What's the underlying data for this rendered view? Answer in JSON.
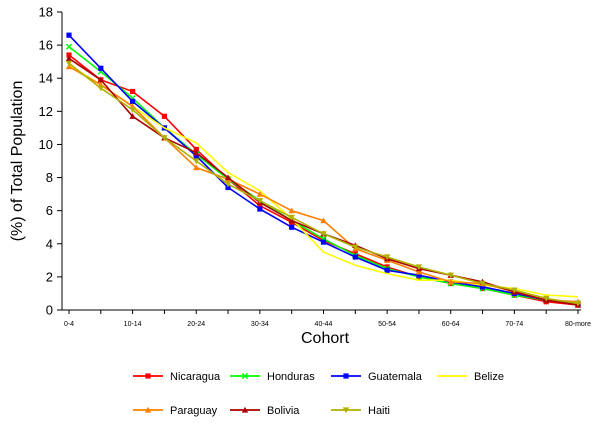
{
  "chart_data": {
    "type": "line",
    "title": "",
    "xlabel": "Cohort",
    "ylabel": "(%) of Total Population",
    "ylim": [
      0,
      18
    ],
    "y_ticks": [
      0,
      2,
      4,
      6,
      8,
      10,
      12,
      14,
      16,
      18
    ],
    "x": [
      "0-4",
      "5-9",
      "10-14",
      "15-19",
      "20-24",
      "25-29",
      "30-34",
      "35-39",
      "40-44",
      "45-49",
      "50-54",
      "55-59",
      "60-64",
      "65-69",
      "70-74",
      "75-79",
      "80-more"
    ],
    "x_tick_labels": [
      "0-4",
      "",
      "10-14",
      "",
      "20-24",
      "",
      "30-34",
      "",
      "40-44",
      "",
      "50-54",
      "",
      "60-64",
      "",
      "70-74",
      "",
      "80-more"
    ],
    "grid": false,
    "legend_position": "bottom",
    "series": [
      {
        "name": "Nicaragua",
        "color": "#ff0000",
        "marker": "square",
        "values": [
          15.4,
          13.9,
          13.2,
          11.7,
          9.7,
          7.9,
          6.3,
          5.3,
          4.2,
          3.4,
          2.6,
          2.0,
          1.6,
          1.3,
          0.9,
          0.5,
          0.3
        ]
      },
      {
        "name": "Honduras",
        "color": "#00ff00",
        "marker": "x",
        "values": [
          15.9,
          14.4,
          12.8,
          11.0,
          9.4,
          7.9,
          6.6,
          5.4,
          4.3,
          3.3,
          2.5,
          2.0,
          1.6,
          1.3,
          0.9,
          0.6,
          0.4
        ]
      },
      {
        "name": "Guatemala",
        "color": "#0000ff",
        "marker": "square",
        "values": [
          16.6,
          14.6,
          12.6,
          11.0,
          9.3,
          7.4,
          6.1,
          5.0,
          4.1,
          3.2,
          2.4,
          2.1,
          1.7,
          1.4,
          1.0,
          0.6,
          0.4
        ]
      },
      {
        "name": "Belize",
        "color": "#ffff00",
        "marker": "none",
        "values": [
          14.8,
          13.6,
          12.3,
          11.0,
          10.1,
          8.3,
          7.2,
          5.5,
          3.5,
          2.7,
          2.2,
          1.8,
          1.8,
          1.5,
          1.3,
          0.9,
          0.8
        ]
      },
      {
        "name": "Paraguay",
        "color": "#ff8000",
        "marker": "triangle",
        "values": [
          14.7,
          13.6,
          12.3,
          10.4,
          8.6,
          7.9,
          7.0,
          6.0,
          5.4,
          3.7,
          3.0,
          2.3,
          1.7,
          1.6,
          1.1,
          0.6,
          0.5
        ]
      },
      {
        "name": "Bolivia",
        "color": "#aa0000",
        "marker": "triangle",
        "values": [
          15.2,
          13.9,
          11.7,
          10.4,
          9.5,
          8.0,
          6.5,
          5.4,
          4.6,
          3.9,
          3.1,
          2.5,
          2.1,
          1.7,
          1.1,
          0.6,
          0.3
        ]
      },
      {
        "name": "Haiti",
        "color": "#b0b000",
        "marker": "triangle-down",
        "values": [
          14.9,
          13.4,
          12.1,
          10.4,
          9.0,
          7.6,
          6.6,
          5.6,
          4.6,
          3.8,
          3.2,
          2.6,
          2.1,
          1.6,
          1.2,
          0.7,
          0.4
        ]
      }
    ]
  }
}
